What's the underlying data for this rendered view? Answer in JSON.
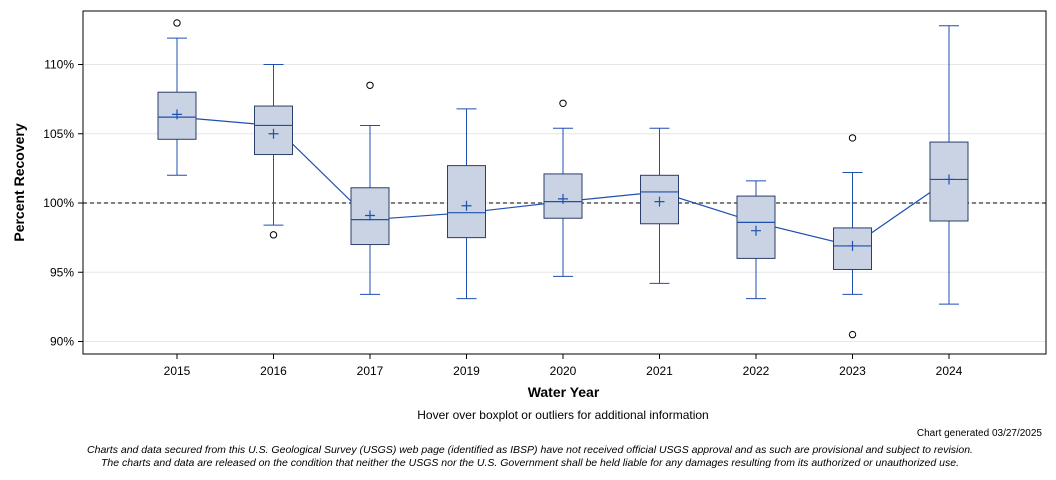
{
  "chart_data": {
    "type": "boxplot",
    "xlabel": "Water Year",
    "ylabel": "Percent Recovery",
    "ylim": [
      89.2,
      113.6
    ],
    "yticks": [
      90,
      95,
      100,
      105,
      110
    ],
    "ytick_labels": [
      "90%",
      "95%",
      "100%",
      "105%",
      "110%"
    ],
    "reference_line": 100,
    "categories": [
      "2015",
      "2016",
      "2017",
      "2019",
      "2020",
      "2021",
      "2022",
      "2023",
      "2024"
    ],
    "boxes": [
      {
        "year": "2015",
        "whisker_low": 102.0,
        "q1": 104.6,
        "median": 106.2,
        "q3": 108.0,
        "whisker_high": 111.9,
        "mean": 106.4,
        "outliers": [
          113.0
        ]
      },
      {
        "year": "2016",
        "whisker_low": 98.4,
        "q1": 103.5,
        "median": 105.6,
        "q3": 107.0,
        "whisker_high": 110.0,
        "mean": 105.0,
        "outliers": [
          97.7
        ]
      },
      {
        "year": "2017",
        "whisker_low": 93.4,
        "q1": 97.0,
        "median": 98.8,
        "q3": 101.1,
        "whisker_high": 105.6,
        "mean": 99.1,
        "outliers": [
          108.5
        ]
      },
      {
        "year": "2019",
        "whisker_low": 93.1,
        "q1": 97.5,
        "median": 99.3,
        "q3": 102.7,
        "whisker_high": 106.8,
        "mean": 99.8,
        "outliers": []
      },
      {
        "year": "2020",
        "whisker_low": 94.7,
        "q1": 98.9,
        "median": 100.1,
        "q3": 102.1,
        "whisker_high": 105.4,
        "mean": 100.3,
        "outliers": [
          107.2
        ]
      },
      {
        "year": "2021",
        "whisker_low": 94.2,
        "q1": 98.5,
        "median": 100.8,
        "q3": 102.0,
        "whisker_high": 105.4,
        "mean": 100.1,
        "outliers": []
      },
      {
        "year": "2022",
        "whisker_low": 93.1,
        "q1": 96.0,
        "median": 98.6,
        "q3": 100.5,
        "whisker_high": 101.6,
        "mean": 98.0,
        "outliers": []
      },
      {
        "year": "2023",
        "whisker_low": 93.4,
        "q1": 95.2,
        "median": 96.9,
        "q3": 98.2,
        "whisker_high": 102.2,
        "mean": 96.9,
        "outliers": [
          104.7,
          90.5
        ]
      },
      {
        "year": "2024",
        "whisker_low": 92.7,
        "q1": 98.7,
        "median": 101.7,
        "q3": 104.4,
        "whisker_high": 112.8,
        "mean": 101.7,
        "outliers": []
      }
    ]
  },
  "colors": {
    "box_fill": "#c9d3e3",
    "box_edge": "#2c3e6b",
    "whisker": "#1f4fb0",
    "median_line": "#1f4fb0",
    "reference_line": "#808080",
    "outlier": "#000000"
  },
  "hover_note": "Hover over boxplot or outliers for additional information",
  "generated": "Chart generated 03/27/2025",
  "disclaimer_line1": "Charts and data secured from this U.S. Geological Survey (USGS) web page (identified as IBSP) have not received official USGS approval and as such are provisional and subject to revision.",
  "disclaimer_line2": "The charts and data are released on the condition that neither the USGS nor the U.S. Government shall be held liable for any damages resulting from its authorized or unauthorized use."
}
